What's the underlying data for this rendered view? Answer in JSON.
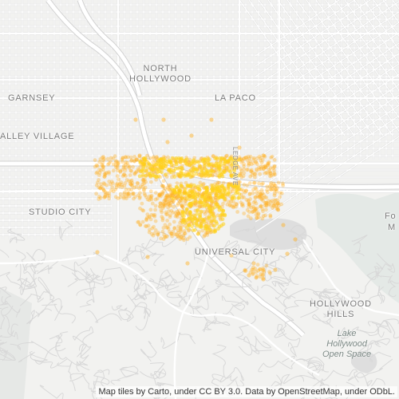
{
  "map": {
    "labels": {
      "north_hollywood": "NORTH\nHOLLYWOOD",
      "garnsey": "GARNSEY",
      "la_paco": "LA PACO",
      "valley_village": "ALLEY VILLAGE",
      "studio_city": "STUDIO CITY",
      "universal_city": "UNIVERSAL CITY",
      "hollywood_hills": "HOLLYWOOD\nHILLS",
      "lake_hollywood": "Lake\nHollywood\nOpen Space",
      "edge_fo": "Fo",
      "edge_m": "M",
      "street_vertical": "LEDGE AVE"
    },
    "attribution": "Map tiles by Carto, under CC BY 3.0. Data by OpenStreetMap, under ODbL.",
    "colors": {
      "background": "#f2f2f0",
      "street": "#ffffff",
      "street_outline": "#dcdcdc",
      "hill_street": "#d8d8d8",
      "water": "#dedede",
      "park": "#e4e9e6",
      "points": "#ffb020",
      "points_dense": "#ffd21a"
    },
    "density_points": {
      "count_estimate": 1500,
      "note_color": "orange-yellow"
    }
  }
}
